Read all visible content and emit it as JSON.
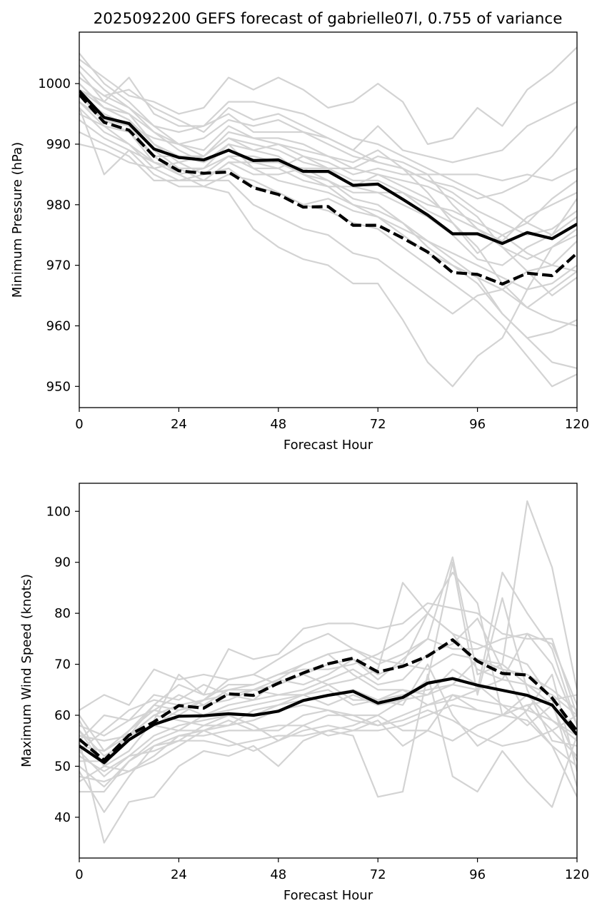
{
  "figure": {
    "title": "2025092200 GEFS forecast of gabrielle07l, 0.755 of variance"
  },
  "colors": {
    "ensemble_member": "#d3d3d3",
    "mean": "#000000",
    "highlight": "#000000",
    "axes": "#000000",
    "background": "#ffffff"
  },
  "chart_data": [
    {
      "type": "line",
      "id": "pressure",
      "title": "",
      "xlabel": "Forecast Hour",
      "ylabel": "Minimum Pressure (hPa)",
      "xlim": [
        0,
        120
      ],
      "ylim": [
        946.5,
        1008.5
      ],
      "xticks": [
        0,
        24,
        48,
        72,
        96,
        120
      ],
      "yticks": [
        950,
        960,
        970,
        980,
        990,
        1000
      ],
      "x": [
        0,
        6,
        12,
        18,
        24,
        30,
        36,
        42,
        48,
        54,
        60,
        66,
        72,
        78,
        84,
        90,
        96,
        102,
        108,
        114,
        120
      ],
      "ensemble": [
        [
          1005,
          1000,
          997,
          993,
          990,
          988,
          991,
          989,
          988,
          985,
          984,
          981,
          980,
          977,
          974,
          971,
          968,
          966,
          963,
          961,
          960
        ],
        [
          1003,
          999,
          996,
          992,
          989,
          987,
          989,
          987,
          986,
          984,
          983,
          980,
          978,
          975,
          972,
          970,
          967,
          962,
          958,
          954,
          953
        ],
        [
          1002,
          997,
          995,
          990,
          987,
          985,
          986,
          983,
          982,
          980,
          979,
          977,
          976,
          973,
          970,
          967,
          964,
          960,
          955,
          950,
          952
        ],
        [
          1000,
          996,
          994,
          989,
          986,
          984,
          984,
          980,
          978,
          976,
          975,
          972,
          971,
          968,
          965,
          962,
          965,
          966,
          969,
          970,
          974
        ],
        [
          998,
          995,
          993,
          988,
          985,
          983,
          982,
          976,
          973,
          971,
          970,
          967,
          967,
          961,
          954,
          950,
          955,
          958,
          966,
          973,
          975
        ],
        [
          997,
          993,
          992,
          987,
          985,
          986,
          990,
          986,
          984,
          983,
          982,
          980,
          979,
          977,
          973,
          970,
          968,
          962,
          958,
          959,
          961
        ],
        [
          996,
          992,
          990,
          986,
          984,
          984,
          987,
          985,
          985,
          986,
          986,
          984,
          984,
          982,
          979,
          977,
          973,
          967,
          963,
          966,
          969
        ],
        [
          994,
          991,
          989,
          985,
          983,
          983,
          985,
          984,
          982,
          980,
          981,
          979,
          978,
          976,
          974,
          972,
          970,
          968,
          966,
          967,
          970
        ],
        [
          992,
          990,
          988,
          984,
          984,
          985,
          988,
          986,
          986,
          988,
          986,
          983,
          982,
          980,
          978,
          975,
          971,
          970,
          973,
          975,
          978
        ],
        [
          990,
          989,
          987,
          986,
          987,
          988,
          992,
          991,
          991,
          990,
          988,
          986,
          985,
          983,
          981,
          978,
          976,
          973,
          971,
          973,
          976
        ],
        [
          1001,
          998,
          999,
          996,
          994,
          992,
          996,
          994,
          995,
          993,
          991,
          989,
          987,
          986,
          984,
          982,
          979,
          977,
          975,
          976,
          979
        ],
        [
          999,
          997,
          1001,
          995,
          993,
          993,
          997,
          997,
          996,
          995,
          993,
          991,
          990,
          988,
          986,
          984,
          982,
          980,
          977,
          975,
          981
        ],
        [
          1004,
          1001,
          998,
          997,
          995,
          996,
          1001,
          999,
          1001,
          999,
          996,
          997,
          1000,
          997,
          990,
          991,
          996,
          993,
          999,
          1002,
          1006
        ],
        [
          998,
          994,
          993,
          991,
          990,
          991,
          994,
          993,
          994,
          992,
          991,
          989,
          993,
          989,
          988,
          987,
          988,
          989,
          993,
          995,
          997
        ],
        [
          997,
          994,
          992,
          988,
          988,
          987,
          990,
          989,
          990,
          989,
          988,
          987,
          989,
          986,
          984,
          983,
          981,
          982,
          984,
          988,
          993
        ],
        [
          1000,
          996,
          995,
          992,
          990,
          989,
          993,
          991,
          990,
          988,
          987,
          985,
          986,
          985,
          985,
          985,
          985,
          984,
          985,
          984,
          986
        ],
        [
          996,
          985,
          989,
          987,
          986,
          986,
          988,
          988,
          987,
          986,
          984,
          982,
          982,
          982,
          980,
          979,
          977,
          975,
          972,
          970,
          969
        ],
        [
          999,
          996,
          994,
          990,
          988,
          988,
          991,
          990,
          989,
          987,
          986,
          986,
          988,
          987,
          985,
          980,
          976,
          974,
          978,
          980,
          982
        ],
        [
          1001,
          998,
          996,
          993,
          992,
          993,
          995,
          992,
          992,
          992,
          990,
          988,
          987,
          986,
          982,
          977,
          972,
          975,
          977,
          981,
          984
        ],
        [
          995,
          993,
          990,
          987,
          986,
          984,
          987,
          987,
          987,
          985,
          983,
          983,
          985,
          984,
          983,
          981,
          978,
          973,
          969,
          965,
          968
        ]
      ],
      "series": [
        {
          "values": [
            998.8,
            994.4,
            993.4,
            989.2,
            987.8,
            987.4,
            989.0,
            987.3,
            987.4,
            985.5,
            985.5,
            983.2,
            983.4,
            980.9,
            978.3,
            975.2,
            975.2,
            973.6,
            975.4,
            974.4,
            976.8
          ],
          "style": "solid"
        },
        {
          "values": [
            998.2,
            993.6,
            992.3,
            988.0,
            985.6,
            985.2,
            985.4,
            982.8,
            981.7,
            979.6,
            979.7,
            976.6,
            976.6,
            974.5,
            972.2,
            968.8,
            968.5,
            966.9,
            968.7,
            968.3,
            972.0
          ],
          "style": "dashed"
        }
      ]
    },
    {
      "type": "line",
      "id": "wind",
      "title": "",
      "xlabel": "Forecast Hour",
      "ylabel": "Maximum Wind Speed (knots)",
      "xlim": [
        0,
        120
      ],
      "ylim": [
        32,
        105.5
      ],
      "xticks": [
        0,
        24,
        48,
        72,
        96,
        120
      ],
      "yticks": [
        40,
        50,
        60,
        70,
        80,
        90,
        100
      ],
      "x": [
        0,
        6,
        12,
        18,
        24,
        30,
        36,
        42,
        48,
        54,
        60,
        66,
        72,
        78,
        84,
        90,
        96,
        102,
        108,
        114,
        120
      ],
      "ensemble": [
        [
          60,
          53,
          56,
          60,
          62,
          63,
          66,
          66,
          68,
          70,
          72,
          73,
          70,
          72,
          75,
          91,
          68,
          70,
          102,
          89,
          65
        ],
        [
          57,
          52,
          55,
          58,
          61,
          62,
          65,
          65,
          66,
          68,
          70,
          71,
          68,
          70,
          80,
          88,
          82,
          60,
          62,
          57,
          52
        ],
        [
          55,
          35,
          43,
          44,
          50,
          53,
          52,
          54,
          50,
          55,
          57,
          56,
          44,
          45,
          68,
          48,
          45,
          53,
          47,
          42,
          56
        ],
        [
          52,
          49,
          52,
          56,
          58,
          59,
          60,
          58,
          55,
          58,
          60,
          60,
          58,
          60,
          62,
          63,
          65,
          88,
          80,
          73,
          58
        ],
        [
          50,
          46,
          51,
          55,
          57,
          57,
          59,
          57,
          57,
          60,
          61,
          60,
          60,
          63,
          67,
          90,
          64,
          83,
          65,
          55,
          54
        ],
        [
          45,
          45,
          51,
          54,
          55,
          58,
          60,
          60,
          62,
          64,
          66,
          67,
          69,
          86,
          80,
          76,
          74,
          72,
          70,
          63,
          46
        ],
        [
          48,
          47,
          49,
          52,
          56,
          56,
          57,
          57,
          58,
          58,
          56,
          57,
          57,
          58,
          60,
          62,
          61,
          60,
          59,
          54,
          50
        ],
        [
          53,
          48,
          52,
          53,
          55,
          55,
          54,
          55,
          56,
          56,
          57,
          58,
          60,
          57,
          57,
          55,
          58,
          60,
          62,
          63,
          64
        ],
        [
          59,
          50,
          53,
          59,
          68,
          64,
          73,
          71,
          72,
          77,
          78,
          78,
          77,
          78,
          82,
          81,
          80,
          76,
          75,
          75,
          60
        ],
        [
          61,
          64,
          62,
          69,
          67,
          68,
          67,
          68,
          71,
          74,
          76,
          73,
          71,
          70,
          69,
          72,
          71,
          70,
          66,
          62,
          57
        ],
        [
          56,
          55,
          56,
          58,
          57,
          60,
          61,
          62,
          63,
          64,
          62,
          64,
          62,
          63,
          64,
          66,
          65,
          67,
          66,
          64,
          60
        ],
        [
          49,
          41,
          48,
          54,
          56,
          57,
          58,
          59,
          61,
          62,
          61,
          59,
          58,
          59,
          61,
          59,
          56,
          54,
          55,
          57,
          60
        ],
        [
          54,
          53,
          57,
          61,
          64,
          62,
          63,
          65,
          64,
          65,
          67,
          69,
          66,
          67,
          72,
          74,
          79,
          69,
          60,
          54,
          44
        ],
        [
          56,
          55,
          56,
          62,
          61,
          63,
          67,
          68,
          66,
          68,
          66,
          63,
          63,
          62,
          70,
          60,
          54,
          57,
          61,
          68,
          49
        ],
        [
          58,
          56,
          59,
          61,
          60,
          63,
          64,
          63,
          67,
          70,
          72,
          68,
          65,
          65,
          64,
          69,
          66,
          62,
          58,
          62,
          51
        ],
        [
          51,
          51,
          56,
          60,
          59,
          58,
          58,
          61,
          62,
          63,
          64,
          65,
          63,
          64,
          65,
          66,
          71,
          69,
          68,
          65,
          61
        ],
        [
          57,
          50,
          57,
          62,
          66,
          64,
          65,
          66,
          68,
          69,
          69,
          70,
          72,
          75,
          80,
          76,
          69,
          67,
          76,
          70,
          58
        ],
        [
          53,
          57,
          61,
          63,
          62,
          60,
          62,
          63,
          64,
          64,
          65,
          62,
          63,
          65,
          62,
          64,
          63,
          62,
          61,
          59,
          55
        ],
        [
          55,
          60,
          59,
          64,
          63,
          66,
          64,
          65,
          67,
          66,
          68,
          71,
          67,
          71,
          75,
          73,
          73,
          75,
          76,
          74,
          62
        ],
        [
          47,
          50,
          49,
          51,
          54,
          57,
          55,
          53,
          55,
          57,
          58,
          57,
          59,
          54,
          57,
          64,
          61,
          60,
          64,
          59,
          56
        ]
      ],
      "series": [
        {
          "values": [
            54.0,
            50.7,
            55.2,
            58.2,
            59.8,
            59.9,
            60.3,
            60.0,
            60.8,
            62.9,
            63.9,
            64.7,
            62.4,
            63.5,
            66.3,
            67.2,
            65.9,
            64.9,
            63.9,
            62.0,
            56.2
          ],
          "style": "solid"
        },
        {
          "values": [
            55.3,
            51.2,
            56.1,
            58.7,
            61.9,
            61.4,
            64.2,
            63.9,
            66.3,
            68.3,
            70.1,
            71.2,
            68.5,
            69.6,
            71.6,
            74.8,
            70.6,
            68.2,
            67.9,
            63.4,
            56.9
          ],
          "style": "dashed"
        }
      ]
    }
  ]
}
